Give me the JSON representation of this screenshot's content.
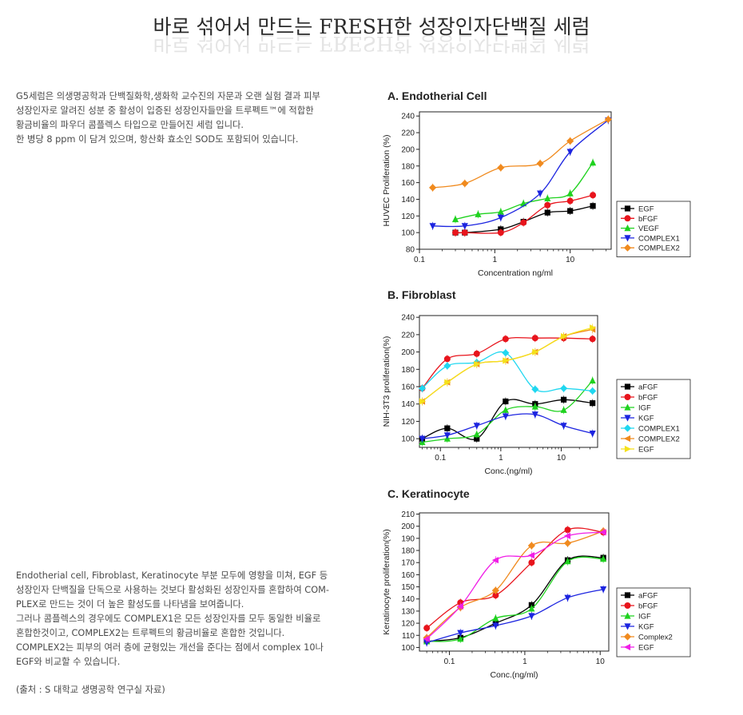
{
  "header": {
    "title": "바로 섞어서 만드는 FRESH한  성장인자단백질 세럼"
  },
  "intro": {
    "lines": [
      "G5세럼은 의생명공학과 단백질화학,생화학 교수진의 자문과 오랜 실험 결과 피부",
      "성장인자로 알려진 성분 중 활성이 입증된 성장인자들만을 트루펙트™에 적합한",
      "황금비율의 파우더 콤플렉스 타입으로 만들어진 세럼 입니다.",
      "한 병당 8 ppm 이 담겨 있으며, 항산화 효소인 SOD도 포함되어 있습니다."
    ]
  },
  "conclusion": {
    "lines": [
      "Endotherial cell, Fibroblast, Keratinocyte 부분 모두에 영향을 미쳐, EGF 등",
      "성장인자 단백질을 단독으로 사용하는 것보다 활성화된 성장인자를 혼합하여 COM-",
      "PLEX로 만드는 것이 더 높은 활성도를 나타냄을 보여줍니다.",
      "그러나 콤플렉스의 경우에도 COMPLEX1은 모든 성장인자를 모두 동일한 비율로",
      "혼합한것이고, COMPLEX2는 트루펙트의 황금비율로 혼합한 것입니다.",
      "COMPLEX2는 피부의 여러 층에 균형있는 개선을 준다는 점에서 complex 10나",
      "EGF와 비교할 수 있습니다."
    ]
  },
  "source": "(출처 : S 대학교 생명공학 연구실 자료)",
  "chart_data": [
    {
      "type": "line",
      "panel_label": "A.  Endotherial Cell",
      "xlabel": "Concentration ng/ml",
      "ylabel": "HUVEC Proliferation (%)",
      "xscale": "log",
      "xlim": [
        0.1,
        35
      ],
      "ylim": [
        80,
        245
      ],
      "xticks": [
        0.1,
        1,
        10
      ],
      "xtick_labels": [
        "0.1",
        "1",
        "10"
      ],
      "yticks": [
        80,
        100,
        120,
        140,
        160,
        180,
        200,
        220,
        240
      ],
      "legend_position": "right",
      "series": [
        {
          "name": "EGF",
          "color": "#000000",
          "marker": "square",
          "x": [
            0.3,
            0.4,
            1.2,
            2.4,
            5,
            10,
            20
          ],
          "y": [
            100,
            100,
            104,
            113,
            124,
            126,
            132
          ]
        },
        {
          "name": "bFGF",
          "color": "#e8141c",
          "marker": "circle",
          "x": [
            0.3,
            0.4,
            1.2,
            2.4,
            5,
            10,
            20
          ],
          "y": [
            100,
            100,
            100,
            112,
            133,
            138,
            145
          ]
        },
        {
          "name": "VEGF",
          "color": "#1fd21f",
          "marker": "triangle-up",
          "x": [
            0.3,
            0.6,
            1.2,
            2.4,
            5,
            10,
            20
          ],
          "y": [
            116,
            122,
            125,
            135,
            141,
            147,
            184
          ]
        },
        {
          "name": "COMPLEX1",
          "color": "#1c24e0",
          "marker": "triangle-down",
          "x": [
            0.15,
            0.4,
            1.2,
            4,
            10,
            32
          ],
          "y": [
            108,
            108,
            118,
            147,
            197,
            235
          ]
        },
        {
          "name": "COMPLEX2",
          "color": "#f08a1e",
          "marker": "diamond",
          "x": [
            0.15,
            0.4,
            1.2,
            4,
            10,
            32
          ],
          "y": [
            154,
            159,
            178,
            183,
            210,
            236
          ]
        }
      ]
    },
    {
      "type": "line",
      "panel_label": "B.  Fibroblast",
      "xlabel": "Conc.(ng/ml)",
      "ylabel": "NIH-3T3 proliferation(%)",
      "xscale": "log",
      "xlim": [
        0.045,
        40
      ],
      "ylim": [
        90,
        242
      ],
      "xticks": [
        0.1,
        1,
        10
      ],
      "xtick_labels": [
        "0.1",
        "1",
        "10"
      ],
      "yticks": [
        100,
        120,
        140,
        160,
        180,
        200,
        220,
        240
      ],
      "legend_position": "right",
      "series": [
        {
          "name": "aFGF",
          "color": "#000000",
          "marker": "square",
          "x": [
            0.05,
            0.13,
            0.4,
            1.2,
            3.7,
            11,
            33
          ],
          "y": [
            100,
            112,
            100,
            143,
            140,
            145,
            141
          ]
        },
        {
          "name": "bFGF",
          "color": "#e8141c",
          "marker": "circle",
          "x": [
            0.05,
            0.13,
            0.4,
            1.2,
            3.7,
            11,
            33
          ],
          "y": [
            158,
            192,
            198,
            215,
            216,
            216,
            215
          ]
        },
        {
          "name": "IGF",
          "color": "#1fd21f",
          "marker": "triangle-up",
          "x": [
            0.05,
            0.13,
            0.4,
            1.2,
            3.7,
            11,
            33
          ],
          "y": [
            96,
            100,
            105,
            133,
            137,
            133,
            167
          ]
        },
        {
          "name": "KGF",
          "color": "#1c24e0",
          "marker": "triangle-down",
          "x": [
            0.05,
            0.13,
            0.4,
            1.2,
            3.7,
            11,
            33
          ],
          "y": [
            100,
            104,
            115,
            126,
            128,
            115,
            106
          ]
        },
        {
          "name": "COMPLEX1",
          "color": "#1fd7f0",
          "marker": "diamond",
          "x": [
            0.05,
            0.13,
            0.4,
            1.2,
            3.7,
            11,
            33
          ],
          "y": [
            158,
            184,
            188,
            199,
            157,
            158,
            155
          ]
        },
        {
          "name": "COMPLEX2",
          "color": "#f08a1e",
          "marker": "triangle-left",
          "x": [
            0.05,
            0.13,
            0.4,
            1.2,
            3.7,
            11,
            33
          ],
          "y": [
            143,
            165,
            186,
            190,
            200,
            218,
            226
          ]
        },
        {
          "name": "EGF",
          "color": "#f5e11a",
          "marker": "triangle-right",
          "x": [
            0.05,
            0.13,
            0.4,
            1.2,
            3.7,
            11,
            33
          ],
          "y": [
            143,
            165,
            186,
            190,
            200,
            218,
            228
          ]
        }
      ]
    },
    {
      "type": "line",
      "panel_label": "C.  Keratinocyte",
      "xlabel": "Conc.(ng/ml)",
      "ylabel": "Keratinocyte proliferation(%)",
      "xscale": "log",
      "xlim": [
        0.04,
        13
      ],
      "ylim": [
        97,
        211
      ],
      "xticks": [
        0.1,
        1,
        10
      ],
      "xtick_labels": [
        "0.1",
        "1",
        "10"
      ],
      "yticks": [
        100,
        110,
        120,
        130,
        140,
        150,
        160,
        170,
        180,
        190,
        200,
        210
      ],
      "legend_position": "right",
      "series": [
        {
          "name": "aFGF",
          "color": "#000000",
          "marker": "square",
          "x": [
            0.05,
            0.14,
            0.41,
            1.23,
            3.7,
            11
          ],
          "y": [
            105,
            108,
            120,
            135,
            172,
            174
          ]
        },
        {
          "name": "bFGF",
          "color": "#e8141c",
          "marker": "circle",
          "x": [
            0.05,
            0.14,
            0.41,
            1.23,
            3.7,
            11
          ],
          "y": [
            116,
            137,
            143,
            170,
            197,
            195
          ]
        },
        {
          "name": "IGF",
          "color": "#1fd21f",
          "marker": "triangle-up",
          "x": [
            0.05,
            0.14,
            0.41,
            1.23,
            3.7,
            11
          ],
          "y": [
            105,
            107,
            124,
            132,
            171,
            173
          ]
        },
        {
          "name": "KGF",
          "color": "#1c24e0",
          "marker": "triangle-down",
          "x": [
            0.05,
            0.14,
            0.41,
            1.23,
            3.7,
            11
          ],
          "y": [
            104,
            112,
            118,
            126,
            141,
            148
          ]
        },
        {
          "name": "Complex2",
          "color": "#f08a1e",
          "marker": "diamond",
          "x": [
            0.05,
            0.14,
            0.41,
            1.23,
            3.7,
            11
          ],
          "y": [
            108,
            133,
            147,
            184,
            186,
            196
          ]
        },
        {
          "name": "EGF",
          "color": "#f01ee6",
          "marker": "triangle-left",
          "x": [
            0.05,
            0.14,
            0.41,
            1.23,
            3.7,
            11
          ],
          "y": [
            107,
            134,
            172,
            176,
            192,
            195
          ]
        }
      ]
    }
  ]
}
